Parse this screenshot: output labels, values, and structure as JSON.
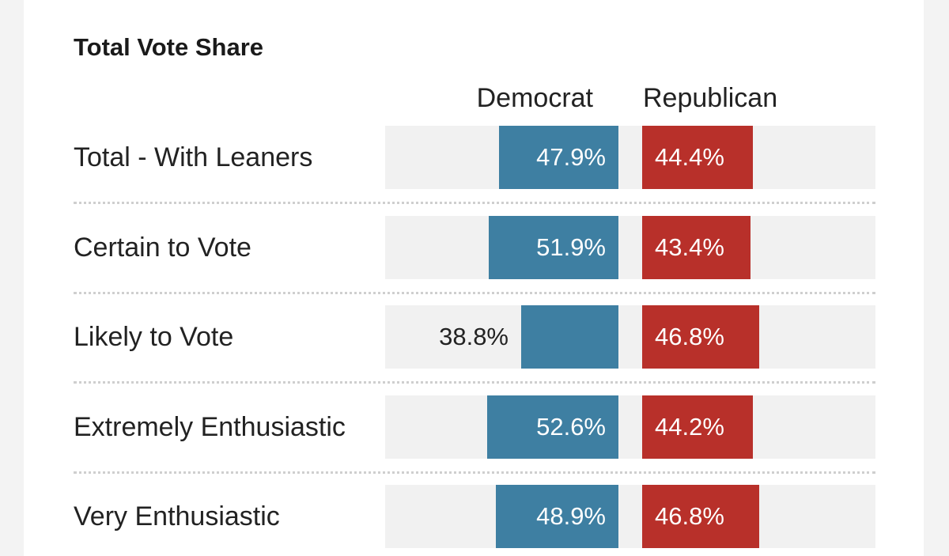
{
  "chart_data": {
    "type": "bar",
    "title": "Total Vote Share",
    "categories": [
      "Total - With Leaners",
      "Certain to Vote",
      "Likely to Vote",
      "Extremely Enthusiastic",
      "Very Enthusiastic"
    ],
    "series": [
      {
        "name": "Democrat",
        "values": [
          47.9,
          51.9,
          38.8,
          52.6,
          48.9
        ],
        "labels": [
          "47.9%",
          "51.9%",
          "38.8%",
          "52.6%",
          "48.9%"
        ],
        "color": "#3e7fa2"
      },
      {
        "name": "Republican",
        "values": [
          44.4,
          43.4,
          46.8,
          44.2,
          46.8
        ],
        "labels": [
          "44.4%",
          "43.4%",
          "46.8%",
          "44.2%",
          "46.8%"
        ],
        "color": "#b8302a"
      }
    ],
    "track_color": "#f1f1f1"
  }
}
